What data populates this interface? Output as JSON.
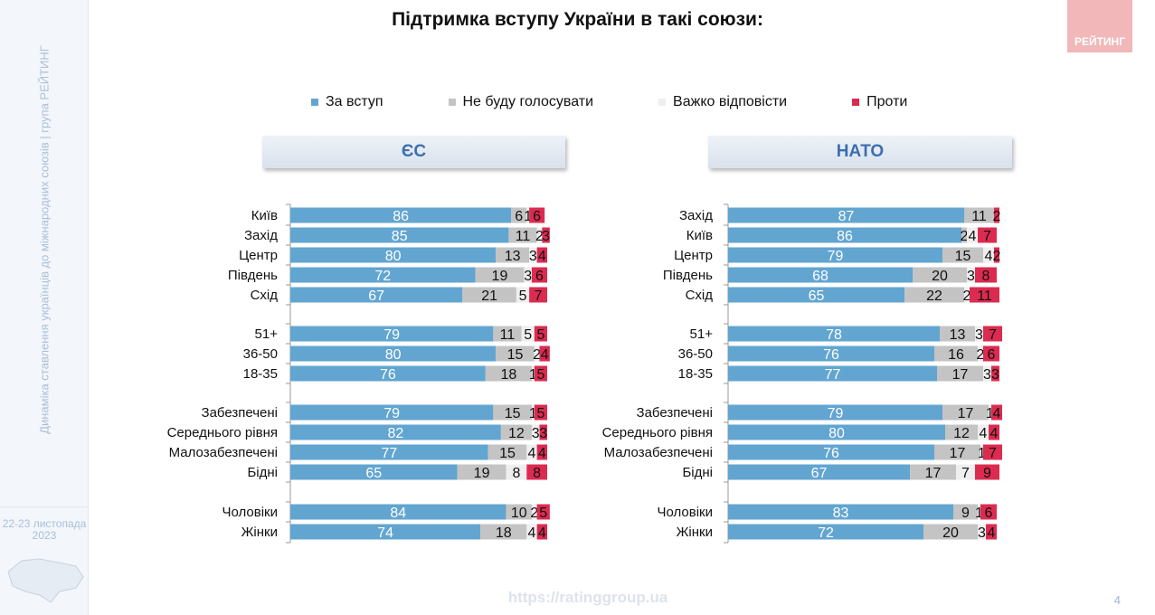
{
  "sidebar": {
    "subtitle": "Динаміка ставлення українців до міжнародних союзів |  група РЕЙТИНГ",
    "date": "22-23 листопада 2023"
  },
  "logo": "РЕЙТИНГ",
  "title": "Підтримка вступу України в такі союзи:",
  "footer": "https://ratinggroup.ua",
  "page_number": "4",
  "colors": {
    "for": "#62a5d1",
    "not_vote": "#c4c4c4",
    "hard": "#efefef",
    "against": "#dc2b50"
  },
  "legend": [
    "За вступ",
    "Не буду голосувати",
    "Важко відповісти",
    "Проти"
  ],
  "chart_data": [
    {
      "type": "bar",
      "orientation": "horizontal",
      "stacked": true,
      "title": "ЄС",
      "categories": [
        "Київ",
        "Захід",
        "Центр",
        "Південь",
        "Схід",
        "51+",
        "36-50",
        "18-35",
        "Забезпечені",
        "Середнього рівня",
        "Малозабезпечені",
        "Бідні",
        "Чоловіки",
        "Жінки"
      ],
      "series": [
        {
          "name": "За вступ",
          "values": [
            86,
            85,
            80,
            72,
            67,
            79,
            80,
            76,
            79,
            82,
            77,
            65,
            84,
            74
          ]
        },
        {
          "name": "Не буду голосувати",
          "values": [
            6,
            11,
            13,
            19,
            21,
            11,
            15,
            18,
            15,
            12,
            15,
            19,
            10,
            18
          ]
        },
        {
          "name": "Важко відповісти",
          "values": [
            1,
            2,
            3,
            3,
            5,
            5,
            2,
            1,
            1,
            3,
            4,
            8,
            2,
            4
          ]
        },
        {
          "name": "Проти",
          "values": [
            6,
            3,
            4,
            6,
            7,
            5,
            4,
            5,
            5,
            3,
            4,
            8,
            5,
            4
          ]
        }
      ]
    },
    {
      "type": "bar",
      "orientation": "horizontal",
      "stacked": true,
      "title": "НАТО",
      "categories": [
        "Захід",
        "Київ",
        "Центр",
        "Південь",
        "Схід",
        "51+",
        "36-50",
        "18-35",
        "Забезпечені",
        "Середнього рівня",
        "Малозабезпечені",
        "Бідні",
        "Чоловіки",
        "Жінки"
      ],
      "series": [
        {
          "name": "За вступ",
          "values": [
            87,
            86,
            79,
            68,
            65,
            78,
            76,
            77,
            79,
            80,
            76,
            67,
            83,
            72
          ]
        },
        {
          "name": "Не буду голосувати",
          "values": [
            11,
            2,
            15,
            20,
            22,
            13,
            16,
            17,
            17,
            12,
            17,
            17,
            9,
            20
          ]
        },
        {
          "name": "Важко відповісти",
          "values": [
            0,
            4,
            4,
            3,
            2,
            3,
            2,
            3,
            1,
            4,
            1,
            7,
            1,
            3
          ]
        },
        {
          "name": "Проти",
          "values": [
            2,
            7,
            2,
            8,
            11,
            7,
            6,
            3,
            4,
            4,
            7,
            9,
            6,
            4
          ]
        }
      ]
    }
  ]
}
